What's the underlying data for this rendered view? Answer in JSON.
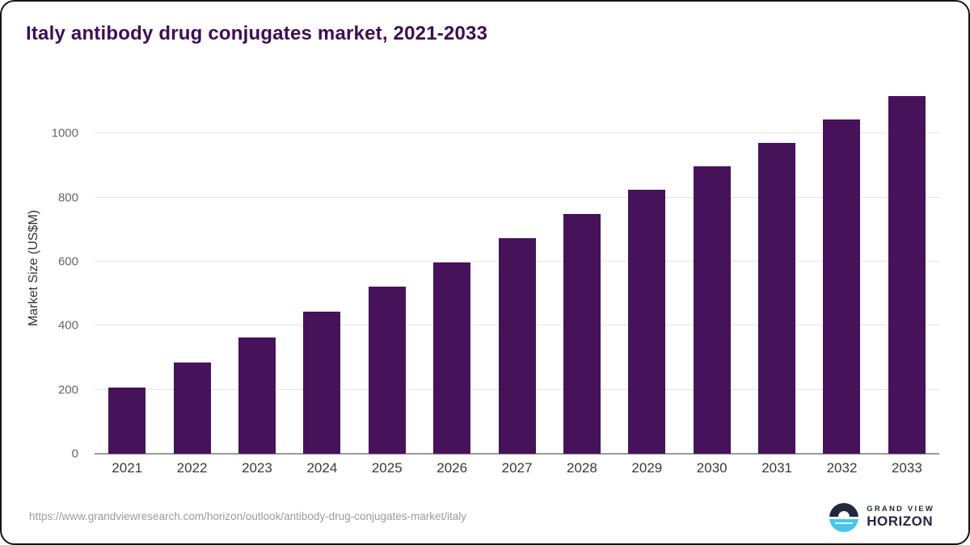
{
  "title": "Italy antibody drug conjugates market, 2021-2033",
  "chart_data": {
    "type": "bar",
    "title": "Italy antibody drug conjugates market, 2021-2033",
    "categories": [
      "2021",
      "2022",
      "2023",
      "2024",
      "2025",
      "2026",
      "2027",
      "2028",
      "2029",
      "2030",
      "2031",
      "2032",
      "2033"
    ],
    "values": [
      207,
      286,
      363,
      443,
      521,
      597,
      674,
      749,
      824,
      899,
      971,
      1043,
      1118
    ],
    "xlabel": "",
    "ylabel": "Market Size (US$M)",
    "ylim": [
      0,
      1160
    ],
    "yticks": [
      0,
      200,
      400,
      600,
      800,
      1000
    ],
    "bar_color": "#46125a",
    "grid": true,
    "legend": false
  },
  "colors": {
    "title": "#3f0d54",
    "bar": "#46125a",
    "gridline": "#e4e4e4",
    "axis": "#9a9a9a",
    "logo_navy": "#23283f",
    "logo_blue": "#45c6ea"
  },
  "footer": {
    "source_url": "https://www.grandviewresearch.com/horizon/outlook/antibody-drug-conjugates-market/italy",
    "logo": {
      "top_text": "GRAND VIEW",
      "bottom_text": "HORIZON",
      "icon": "horizon-sun-icon"
    }
  }
}
